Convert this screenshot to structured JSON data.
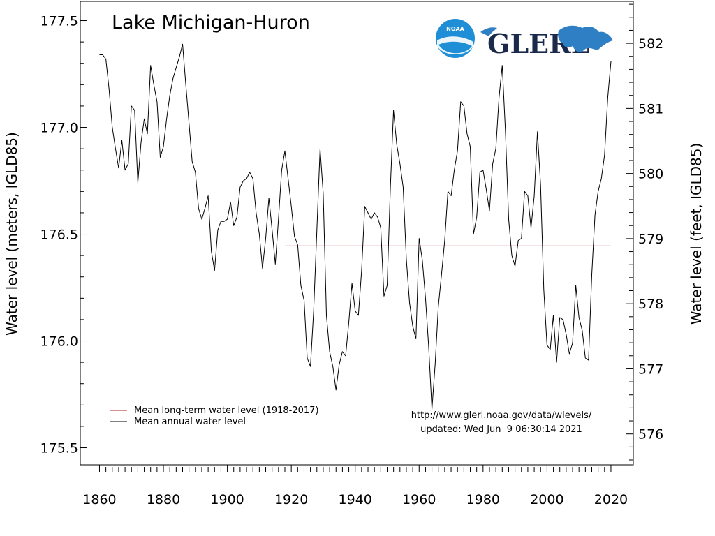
{
  "chart_data": {
    "type": "line",
    "title": "Lake Michigan-Huron",
    "ylabel": "Water level (meters, IGLD85)",
    "ylabel_right": "Water level (feet, IGLD85)",
    "xlim": [
      1854,
      2027
    ],
    "ylim": [
      175.42,
      177.59
    ],
    "xticks": [
      1860,
      1880,
      1900,
      1920,
      1940,
      1960,
      1980,
      2000,
      2020
    ],
    "yticks": [
      175.5,
      176.0,
      176.5,
      177.0,
      177.5
    ],
    "yticks_right": [
      576,
      577,
      578,
      579,
      580,
      581,
      582
    ],
    "legend_position": "lower-left",
    "grid": false,
    "series": [
      {
        "name": "Mean long-term water level (1918-2017)",
        "color": "#b22222",
        "x": [
          1918,
          2020
        ],
        "values": [
          176.445,
          176.445
        ]
      },
      {
        "name": "Mean annual water level",
        "color": "#000000",
        "x": [
          1860,
          1861,
          1862,
          1863,
          1864,
          1865,
          1866,
          1867,
          1868,
          1869,
          1870,
          1871,
          1872,
          1873,
          1874,
          1875,
          1876,
          1877,
          1878,
          1879,
          1880,
          1881,
          1882,
          1883,
          1884,
          1885,
          1886,
          1887,
          1888,
          1889,
          1890,
          1891,
          1892,
          1893,
          1894,
          1895,
          1896,
          1897,
          1898,
          1899,
          1900,
          1901,
          1902,
          1903,
          1904,
          1905,
          1906,
          1907,
          1908,
          1909,
          1910,
          1911,
          1912,
          1913,
          1914,
          1915,
          1916,
          1917,
          1918,
          1919,
          1920,
          1921,
          1922,
          1923,
          1924,
          1925,
          1926,
          1927,
          1928,
          1929,
          1930,
          1931,
          1932,
          1933,
          1934,
          1935,
          1936,
          1937,
          1938,
          1939,
          1940,
          1941,
          1942,
          1943,
          1944,
          1945,
          1946,
          1947,
          1948,
          1949,
          1950,
          1951,
          1952,
          1953,
          1954,
          1955,
          1956,
          1957,
          1958,
          1959,
          1960,
          1961,
          1962,
          1963,
          1964,
          1965,
          1966,
          1967,
          1968,
          1969,
          1970,
          1971,
          1972,
          1973,
          1974,
          1975,
          1976,
          1977,
          1978,
          1979,
          1980,
          1981,
          1982,
          1983,
          1984,
          1985,
          1986,
          1987,
          1988,
          1989,
          1990,
          1991,
          1992,
          1993,
          1994,
          1995,
          1996,
          1997,
          1998,
          1999,
          2000,
          2001,
          2002,
          2003,
          2004,
          2005,
          2006,
          2007,
          2008,
          2009,
          2010,
          2011,
          2012,
          2013,
          2014,
          2015,
          2016,
          2017,
          2018,
          2019,
          2020
        ],
        "values": [
          177.34,
          177.34,
          177.32,
          177.18,
          177.0,
          176.9,
          176.81,
          176.94,
          176.8,
          176.83,
          177.1,
          177.08,
          176.74,
          176.93,
          177.04,
          176.97,
          177.29,
          177.2,
          177.12,
          176.86,
          176.91,
          177.04,
          177.15,
          177.23,
          177.28,
          177.33,
          177.39,
          177.2,
          177.02,
          176.84,
          176.79,
          176.62,
          176.57,
          176.62,
          176.68,
          176.42,
          176.33,
          176.52,
          176.56,
          176.56,
          176.57,
          176.65,
          176.54,
          176.58,
          176.72,
          176.75,
          176.76,
          176.79,
          176.76,
          176.6,
          176.5,
          176.34,
          176.48,
          176.67,
          176.52,
          176.36,
          176.57,
          176.8,
          176.89,
          176.76,
          176.63,
          176.49,
          176.45,
          176.26,
          176.19,
          175.92,
          175.88,
          176.14,
          176.52,
          176.9,
          176.69,
          176.12,
          175.95,
          175.88,
          175.77,
          175.89,
          175.95,
          175.93,
          176.09,
          176.27,
          176.14,
          176.12,
          176.33,
          176.63,
          176.6,
          176.57,
          176.6,
          176.58,
          176.53,
          176.21,
          176.26,
          176.72,
          177.08,
          176.92,
          176.83,
          176.72,
          176.38,
          176.18,
          176.07,
          176.01,
          176.48,
          176.38,
          176.2,
          175.97,
          175.68,
          175.89,
          176.16,
          176.31,
          176.47,
          176.7,
          176.68,
          176.8,
          176.89,
          177.12,
          177.1,
          176.97,
          176.91,
          176.5,
          176.58,
          176.79,
          176.8,
          176.71,
          176.61,
          176.83,
          176.9,
          177.14,
          177.29,
          176.98,
          176.57,
          176.4,
          176.35,
          176.47,
          176.48,
          176.7,
          176.68,
          176.53,
          176.68,
          176.98,
          176.73,
          176.24,
          175.98,
          175.96,
          176.12,
          175.9,
          176.11,
          176.1,
          176.03,
          175.94,
          175.99,
          176.26,
          176.11,
          176.05,
          175.92,
          175.91,
          176.31,
          176.59,
          176.7,
          176.76,
          176.87,
          177.14,
          177.31
        ]
      }
    ],
    "annotations": [
      "http://www.glerl.noaa.gov/data/wlevels/",
      "updated: Wed Jun  9 06:30:14 2021"
    ]
  },
  "logos": {
    "noaa": "NOAA",
    "glerl": "GLERL",
    "noaa_color": "#1e8fd6",
    "glerl_color": "#1b2a4a",
    "lakes_color": "#2f7fc5"
  }
}
